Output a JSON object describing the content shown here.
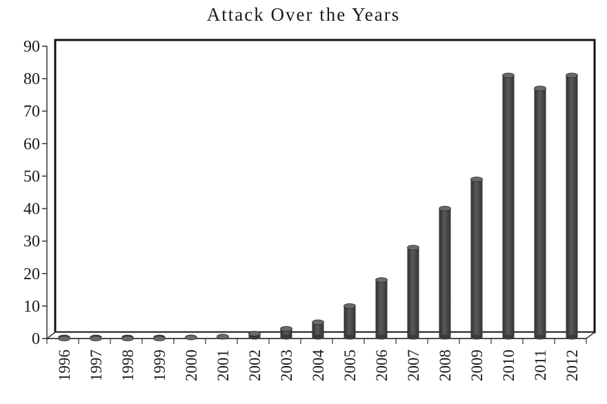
{
  "chart_data": {
    "type": "bar",
    "title": "Attack Over the Years",
    "xlabel": "",
    "ylabel": "",
    "categories": [
      "1996",
      "1997",
      "1998",
      "1999",
      "2000",
      "2001",
      "2002",
      "2003",
      "2004",
      "2005",
      "2006",
      "2007",
      "2008",
      "2009",
      "2010",
      "2011",
      "2012"
    ],
    "values": [
      0,
      0,
      0,
      0,
      0.3,
      0.6,
      1.5,
      3,
      5,
      10,
      18,
      28,
      40,
      49,
      81,
      77,
      81
    ],
    "ylim": [
      0,
      90
    ],
    "yticks": [
      "0",
      "10",
      "20",
      "30",
      "40",
      "50",
      "60",
      "70",
      "80",
      "90"
    ],
    "grid": false,
    "legend": "none",
    "bar_color": "#4a4a4c"
  }
}
